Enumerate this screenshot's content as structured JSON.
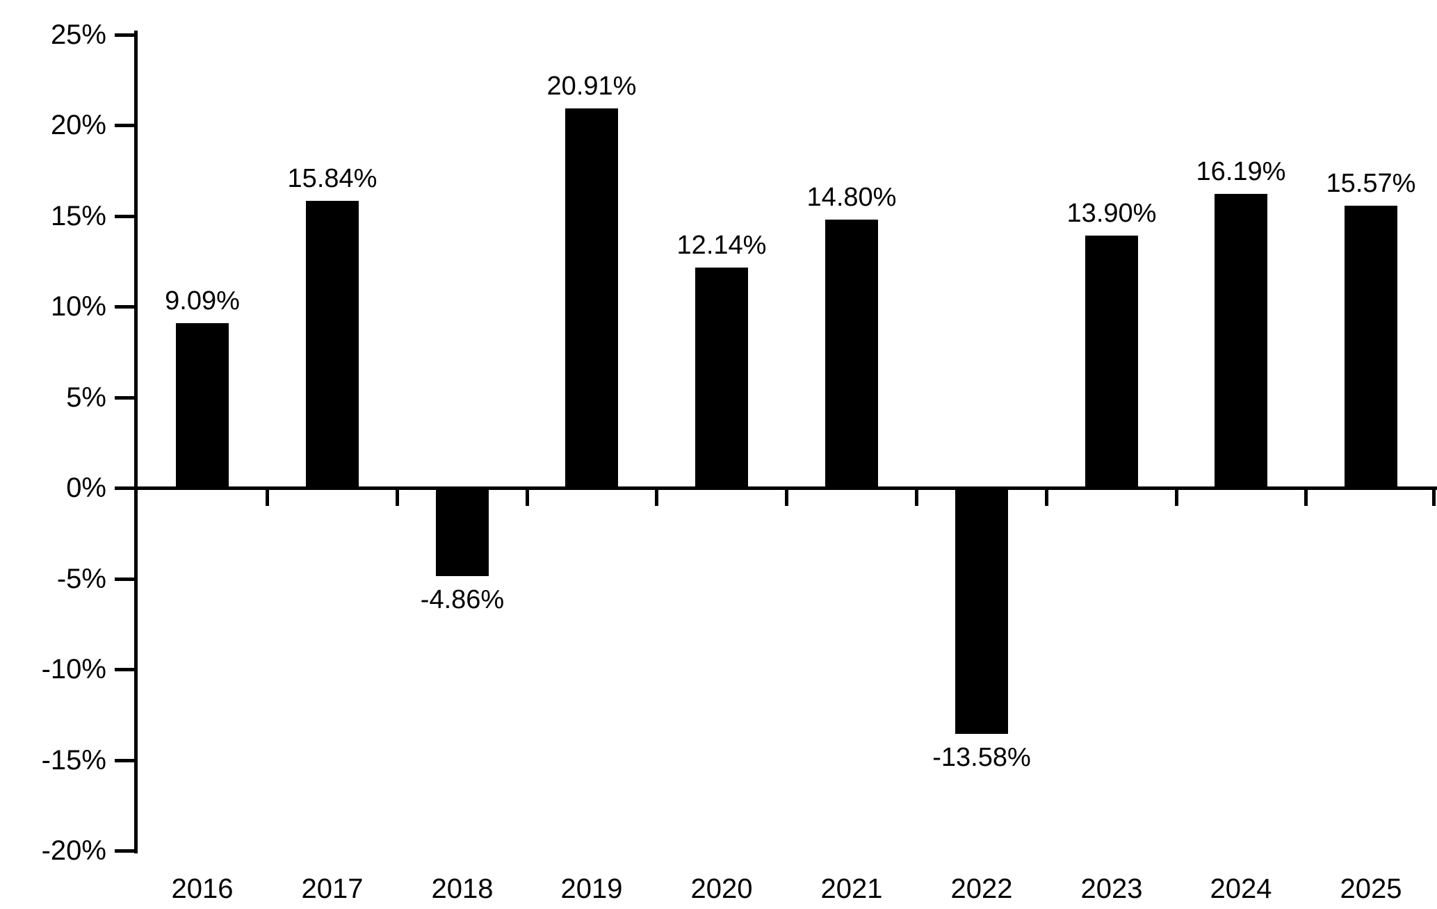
{
  "chart_data": {
    "type": "bar",
    "title": "",
    "xlabel": "",
    "ylabel": "",
    "categories": [
      "2016",
      "2017",
      "2018",
      "2019",
      "2020",
      "2021",
      "2022",
      "2023",
      "2024",
      "2025"
    ],
    "values": [
      9.09,
      15.84,
      -4.86,
      20.91,
      12.14,
      14.8,
      -13.58,
      13.9,
      16.19,
      15.57
    ],
    "value_labels": [
      "9.09%",
      "15.84%",
      "-4.86%",
      "20.91%",
      "12.14%",
      "14.80%",
      "-13.58%",
      "13.90%",
      "16.19%",
      "15.57%"
    ],
    "ylim": [
      -20,
      25
    ],
    "yticks": [
      25,
      20,
      15,
      10,
      5,
      0,
      -5,
      -10,
      -15,
      -20
    ],
    "ytick_labels": [
      "25%",
      "20%",
      "15%",
      "10%",
      "5%",
      "0%",
      "-5%",
      "-10%",
      "-15%",
      "-20%"
    ],
    "bar_color": "#000000",
    "axis_color": "#000000",
    "text_color": "#000000",
    "grid": false,
    "legend": null,
    "baseline": 0
  }
}
